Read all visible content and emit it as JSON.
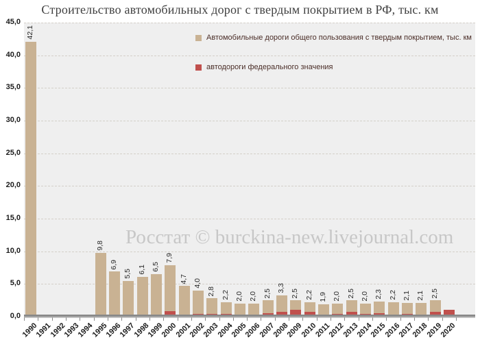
{
  "title": "Строительство автомобильных дорог с твердым покрытием в РФ, тыс. км",
  "watermark": "Росстат © burckina-new.livejournal.com",
  "legend": [
    {
      "label": "Автомобильные дороги общего пользования с твердым покрытием, тыс. км",
      "color": "#c9b293"
    },
    {
      "label": "автодороги федерального значения",
      "color": "#c0504d"
    }
  ],
  "colors": {
    "total_bar": "#c9b293",
    "federal_bar": "#c0504d",
    "plot_background": "#efefef",
    "title_text": "#3f3f3f",
    "legend_text": "#4a2d27",
    "axis": "#8a8a8a"
  },
  "chart_data": {
    "type": "bar",
    "title": "Строительство автомобильных дорог с твердым покрытием в РФ, тыс. км",
    "categories": [
      "1990",
      "1991",
      "1992",
      "1993",
      "1994",
      "1995",
      "1996",
      "1997",
      "1998",
      "1999",
      "2000",
      "2001",
      "2002",
      "2003",
      "2004",
      "2005",
      "2006",
      "2007",
      "2008",
      "2009",
      "2010",
      "2011",
      "2012",
      "2013",
      "2014",
      "2015",
      "2016",
      "2017",
      "2018",
      "2019",
      "2020"
    ],
    "series": [
      {
        "name": "Автомобильные дороги общего пользования с твердым покрытием, тыс. км",
        "color": "#c9b293",
        "values": [
          42.1,
          null,
          null,
          null,
          null,
          9.8,
          6.9,
          5.5,
          6.1,
          6.5,
          7.9,
          4.7,
          4.0,
          2.8,
          2.2,
          2.0,
          2.0,
          2.5,
          3.3,
          2.5,
          2.2,
          1.9,
          2.0,
          2.5,
          2.0,
          2.3,
          2.2,
          2.1,
          2.1,
          2.5,
          null
        ]
      },
      {
        "name": "автодороги федерального значения",
        "color": "#c0504d",
        "values": [
          null,
          null,
          null,
          null,
          null,
          null,
          null,
          null,
          null,
          null,
          0.8,
          0.25,
          0.4,
          0.4,
          0.4,
          0.15,
          0.35,
          0.5,
          0.7,
          1.0,
          0.7,
          0.3,
          0.4,
          0.7,
          0.4,
          0.5,
          0.35,
          0.45,
          0.3,
          0.75,
          1.0
        ],
        "note": "values estimated from bar pixel heights; no data labels shown for this series"
      }
    ],
    "data_labels": [
      "42,1",
      "",
      "",
      "",
      "",
      "9,8",
      "6,9",
      "5,5",
      "6,1",
      "6,5",
      "7,9",
      "4,7",
      "4,0",
      "2,8",
      "2,2",
      "2,0",
      "2,0",
      "2,5",
      "3,3",
      "2,5",
      "2,2",
      "1,9",
      "2,0",
      "2,5",
      "2,0",
      "2,3",
      "2,2",
      "2,1",
      "2,1",
      "2,5",
      ""
    ],
    "ylim": [
      0,
      45
    ],
    "ytick_step": 5,
    "ytick_labels": [
      "0,0",
      "5,0",
      "10,0",
      "15,0",
      "20,0",
      "25,0",
      "30,0",
      "35,0",
      "40,0",
      "45,0"
    ],
    "grid": "horizontal dashed gridlines on",
    "legend_position": "inside plot, top-right area",
    "bar_mode": "overlay (federal drawn in front of total at baseline)"
  }
}
